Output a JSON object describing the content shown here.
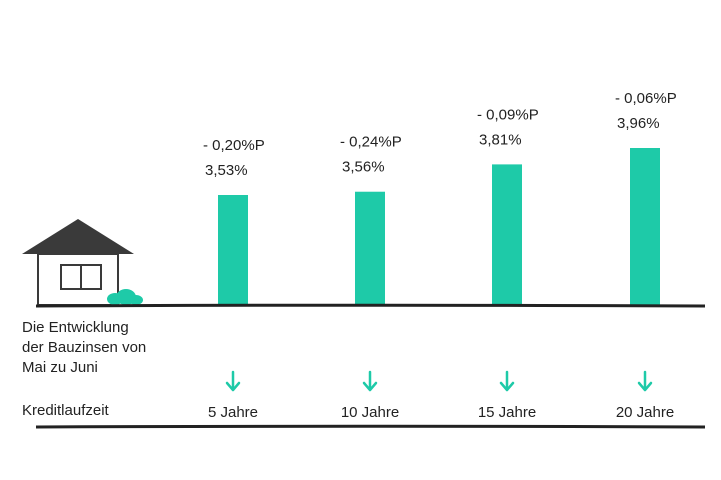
{
  "chart_data": {
    "type": "bar",
    "title_lines": [
      "Die Entwicklung",
      "der Bauzinsen von",
      "Mai zu Juni"
    ],
    "category_axis_label": "Kreditlaufzeit",
    "categories": [
      "5 Jahre",
      "10 Jahre",
      "15 Jahre",
      "20 Jahre"
    ],
    "values": [
      3.53,
      3.56,
      3.81,
      3.96
    ],
    "value_labels": [
      "3,53%",
      "3,56%",
      "3,81%",
      "3,96%"
    ],
    "change_labels": [
      "- 0,20%P",
      "- 0,24%P",
      "- 0,09%P",
      "- 0,06%P"
    ],
    "changes": [
      -0.2,
      -0.24,
      -0.09,
      -0.06
    ],
    "ylim": [
      0,
      5
    ],
    "grid": false,
    "bar_color": "#1ecaa8",
    "arrow_color": "#1ecaa8",
    "text_color": "#222222",
    "house_color": "#3a3a3a"
  }
}
